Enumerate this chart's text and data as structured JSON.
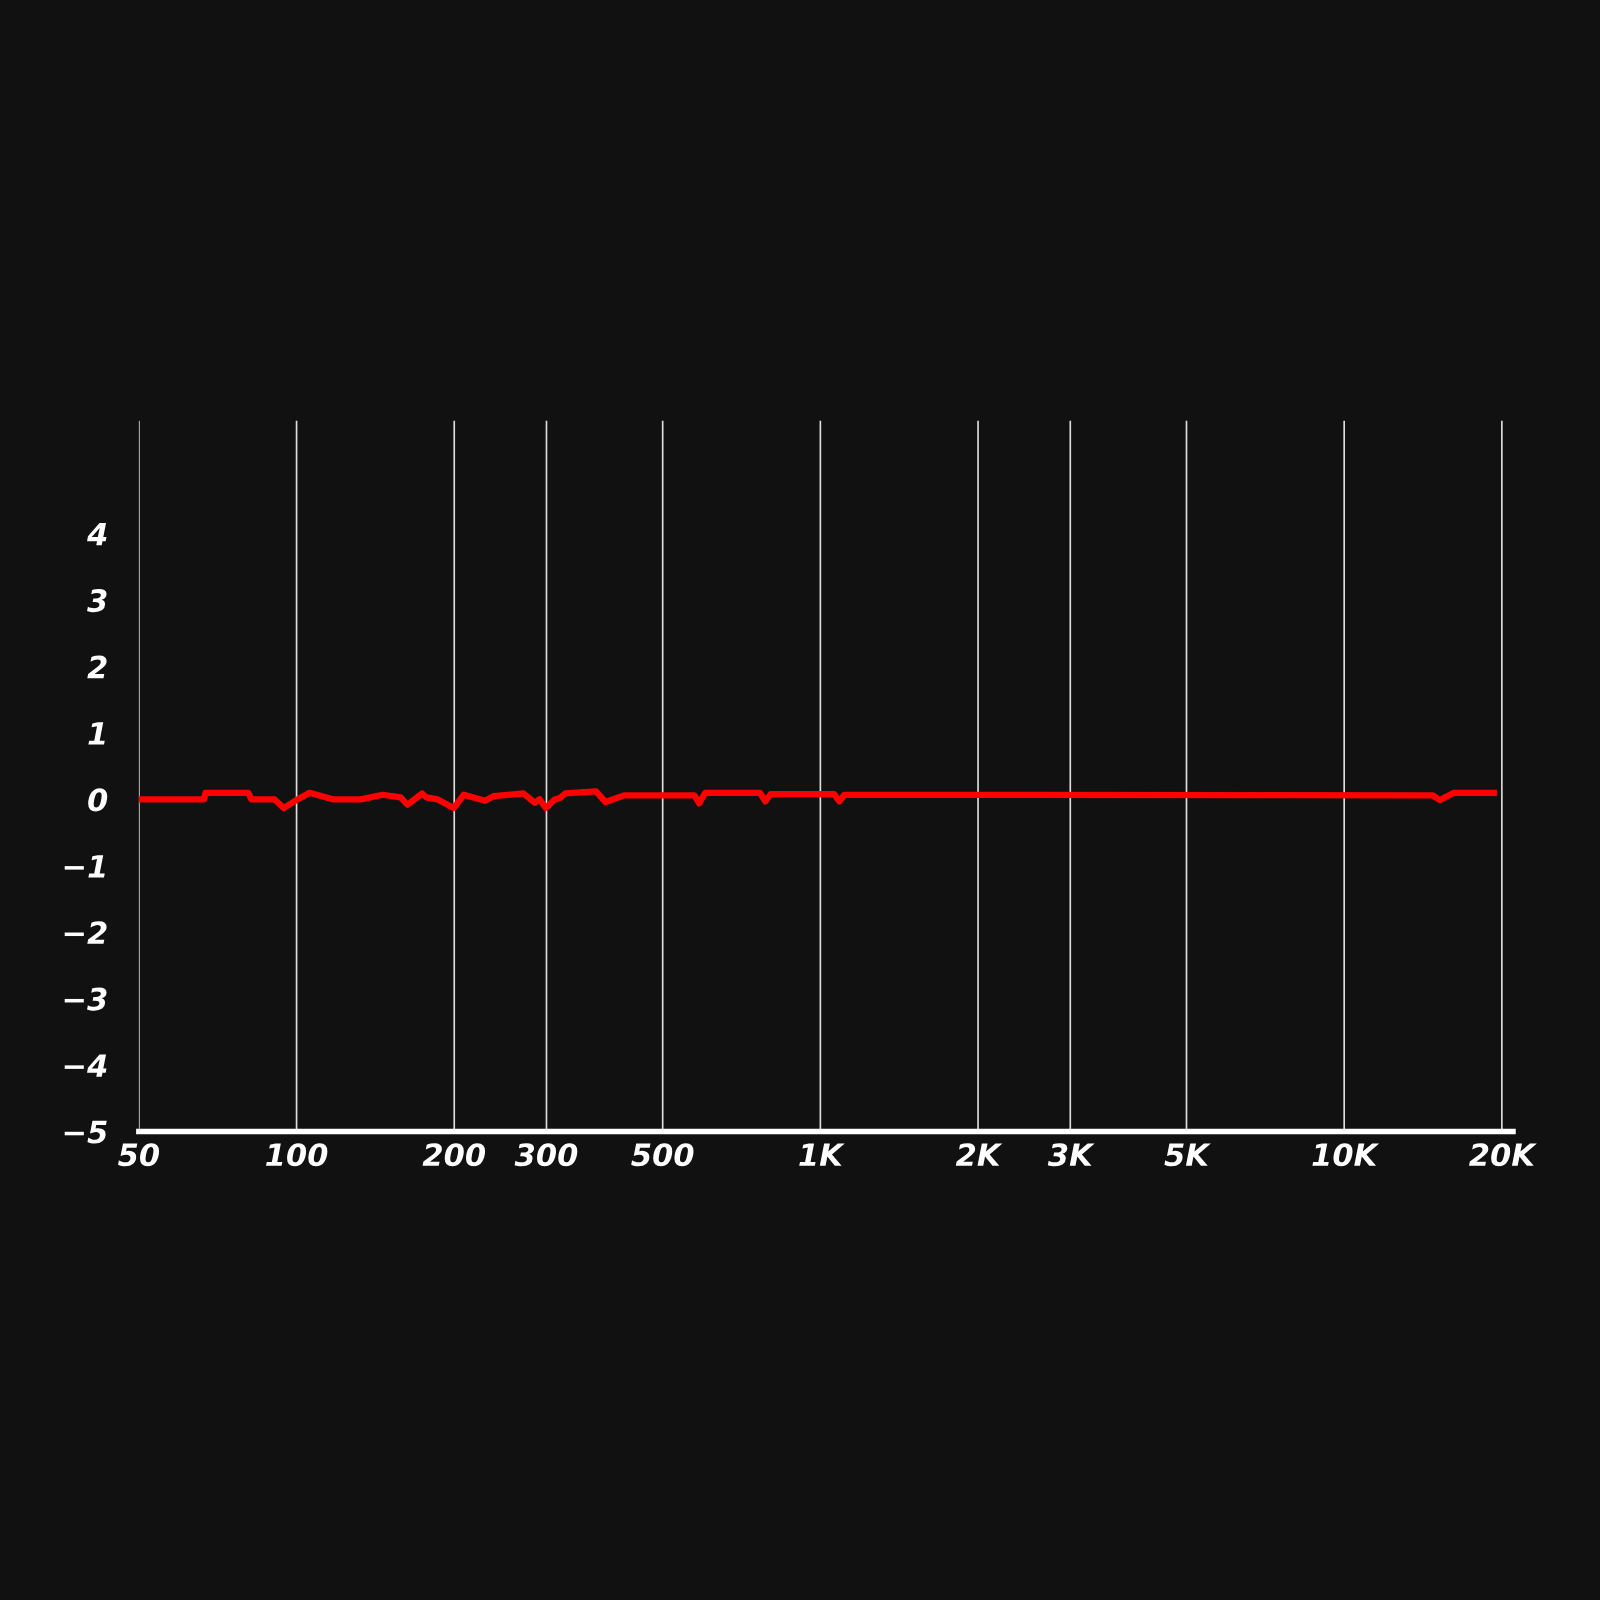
{
  "chart_data": {
    "type": "line",
    "log": "x",
    "grid": "x",
    "x": [
      50,
      66.6,
      67,
      80.9,
      82,
      90.8,
      94.5,
      100.4,
      105.9,
      117.7,
      132.6,
      146,
      158,
      162.8,
      173.7,
      177,
      186,
      199.5,
      208.6,
      229,
      238,
      271,
      285,
      291,
      299,
      311,
      318,
      326,
      373,
      389,
      422,
      575,
      587,
      603,
      767,
      785,
      804,
      1062,
      1087,
      1111,
      14760,
      15230,
      16200,
      19300
    ],
    "series": [
      {
        "color": "#ff0000",
        "values": [
          0.0,
          0.0,
          0.1,
          0.1,
          0.0,
          0.0,
          -0.13,
          0.0,
          0.1,
          0.0,
          0.0,
          0.07,
          0.03,
          -0.08,
          0.09,
          0.03,
          0.0,
          -0.13,
          0.07,
          -0.02,
          0.05,
          0.09,
          -0.05,
          0.0,
          -0.13,
          0.0,
          0.02,
          0.09,
          0.12,
          -0.04,
          0.06,
          0.06,
          -0.06,
          0.1,
          0.1,
          -0.03,
          0.08,
          0.08,
          -0.03,
          0.07,
          0.06,
          -0.01,
          0.1,
          0.1
        ]
      }
    ],
    "xlim": [
      50,
      21000
    ],
    "ylim": [
      -5,
      5.7
    ],
    "xticks": [
      {
        "value": 50,
        "label": "50"
      },
      {
        "value": 100,
        "label": "100"
      },
      {
        "value": 200,
        "label": "200"
      },
      {
        "value": 300,
        "label": "300"
      },
      {
        "value": 500,
        "label": "500"
      },
      {
        "value": 1000,
        "label": "1K"
      },
      {
        "value": 2000,
        "label": "2K"
      },
      {
        "value": 3000,
        "label": "3K"
      },
      {
        "value": 5000,
        "label": "5K"
      },
      {
        "value": 10000,
        "label": "10K"
      },
      {
        "value": 20000,
        "label": "20K"
      }
    ],
    "yticks": [
      -5,
      -4,
      -3,
      -2,
      -1,
      0,
      1,
      2,
      3,
      4
    ]
  }
}
